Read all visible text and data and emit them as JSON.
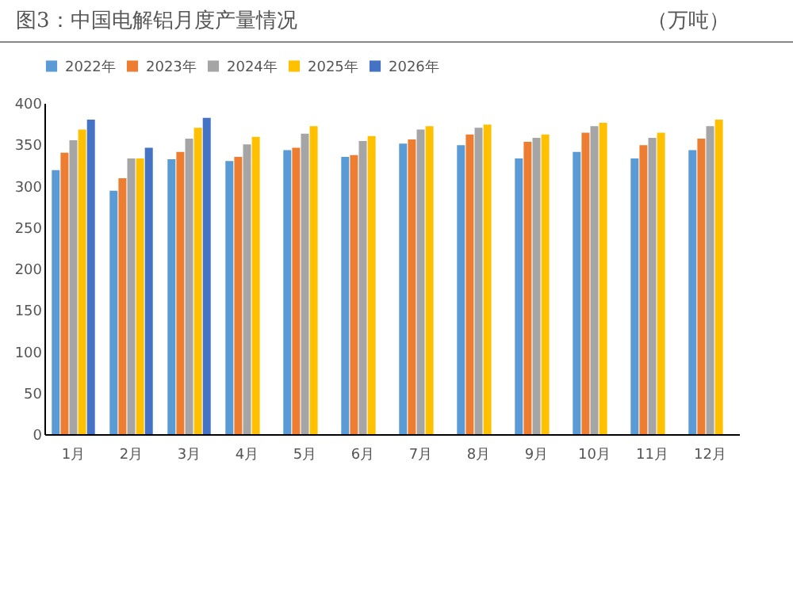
{
  "chart_data": {
    "type": "bar",
    "title": "图3：中国电解铝月度产量情况",
    "ylabel": "（万吨）",
    "categories": [
      "1月",
      "2月",
      "3月",
      "4月",
      "5月",
      "6月",
      "7月",
      "8月",
      "9月",
      "10月",
      "11月",
      "12月"
    ],
    "series": [
      {
        "name": "2022年",
        "color": "#5b9bd5",
        "values": [
          319,
          294,
          332,
          330,
          343,
          335,
          351,
          349,
          333,
          341,
          333,
          343
        ]
      },
      {
        "name": "2023年",
        "color": "#ed7d31",
        "values": [
          340,
          309,
          341,
          335,
          346,
          337,
          356,
          362,
          353,
          364,
          349,
          357
        ]
      },
      {
        "name": "2024年",
        "color": "#a5a5a5",
        "values": [
          355,
          333,
          357,
          350,
          363,
          354,
          368,
          370,
          358,
          372,
          358,
          372
        ]
      },
      {
        "name": "2025年",
        "color": "#ffc000",
        "values": [
          368,
          333,
          370,
          359,
          372,
          360,
          372,
          374,
          362,
          376,
          364,
          380
        ]
      },
      {
        "name": "2026年",
        "color": "#4472c4",
        "values": [
          380,
          346,
          382,
          null,
          null,
          null,
          null,
          null,
          null,
          null,
          null,
          null
        ]
      }
    ],
    "ylim": [
      0,
      400
    ],
    "yticks": [
      0,
      50,
      100,
      150,
      200,
      250,
      300,
      350,
      400
    ],
    "grid": false,
    "legend": "top"
  }
}
